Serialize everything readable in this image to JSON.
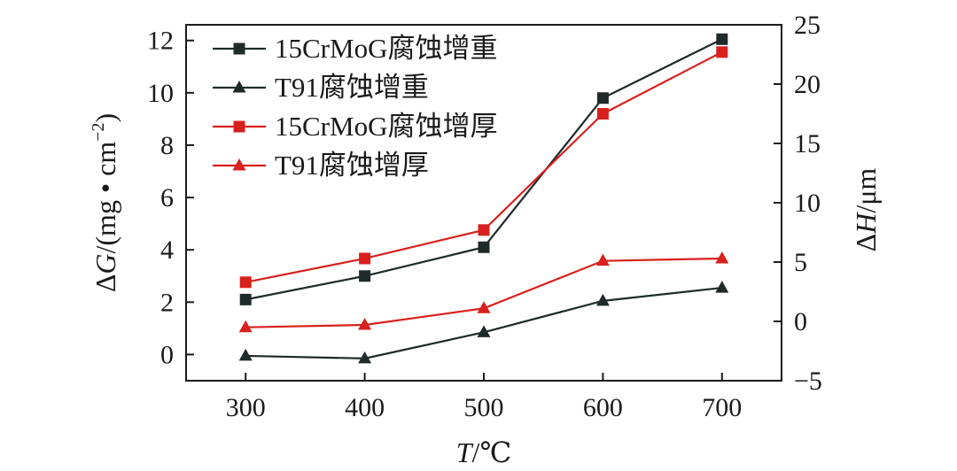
{
  "chart_data": {
    "type": "line",
    "x": [
      300,
      400,
      500,
      600,
      700
    ],
    "xlabel_italic": "T",
    "xlabel_rest": "/℃",
    "ylabel_left_italic": "G",
    "ylabel_left_prefix": "Δ",
    "ylabel_left_rest": "/(mg • cm",
    "ylabel_left_sup": "−2",
    "ylabel_left_close": ")",
    "ylabel_right_prefix": "Δ",
    "ylabel_right_italic": "H",
    "ylabel_right_rest": "/μm",
    "xlim": [
      250,
      750
    ],
    "ylim_left": [
      -1,
      12.6
    ],
    "ylim_right": [
      -5,
      25
    ],
    "xticks": [
      "300",
      "400",
      "500",
      "600",
      "700"
    ],
    "yticks_left": [
      "0",
      "2",
      "4",
      "6",
      "8",
      "10",
      "12"
    ],
    "yticks_right": [
      "−5",
      "0",
      "5",
      "10",
      "15",
      "20",
      "25"
    ],
    "legend_position": "top-left",
    "grid": false,
    "series": [
      {
        "name": "15CrMoG腐蚀增重",
        "axis": "left",
        "marker": "square",
        "color": "#1f2a2a",
        "values": [
          2.1,
          3.0,
          4.1,
          9.8,
          12.05
        ]
      },
      {
        "name": "T91腐蚀增重",
        "axis": "left",
        "marker": "triangle",
        "color": "#1f2a2a",
        "values": [
          -0.05,
          -0.15,
          0.85,
          2.05,
          2.55
        ]
      },
      {
        "name": "15CrMoG腐蚀增厚",
        "axis": "right",
        "marker": "square",
        "color": "#d8201c",
        "values": [
          3.3,
          5.3,
          7.7,
          17.5,
          22.7
        ]
      },
      {
        "name": "T91腐蚀增厚",
        "axis": "right",
        "marker": "triangle",
        "color": "#d8201c",
        "values": [
          -0.5,
          -0.3,
          1.1,
          5.1,
          5.3
        ]
      }
    ]
  }
}
